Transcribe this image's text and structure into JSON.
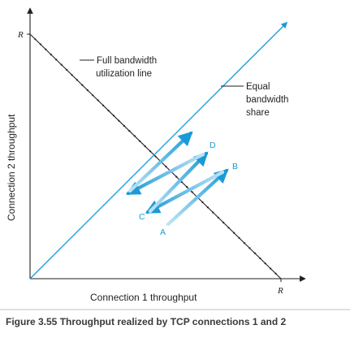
{
  "diagram": {
    "x_axis_label": "Connection 1 throughput",
    "y_axis_label": "Connection 2 throughput",
    "x_max_label": "R",
    "y_max_label": "R",
    "full_bandwidth_label": [
      "Full bandwidth",
      "utilization line"
    ],
    "equal_share_label": [
      "Equal",
      "bandwidth",
      "share"
    ],
    "points": {
      "a": "A",
      "b": "B",
      "c": "C",
      "d": "D"
    },
    "colors": {
      "line_blue": "#1a9ad6",
      "light_blue": "#a8d8f0",
      "black": "#231f20"
    }
  },
  "caption": "Figure 3.55 Throughput realized by TCP connections 1 and 2"
}
